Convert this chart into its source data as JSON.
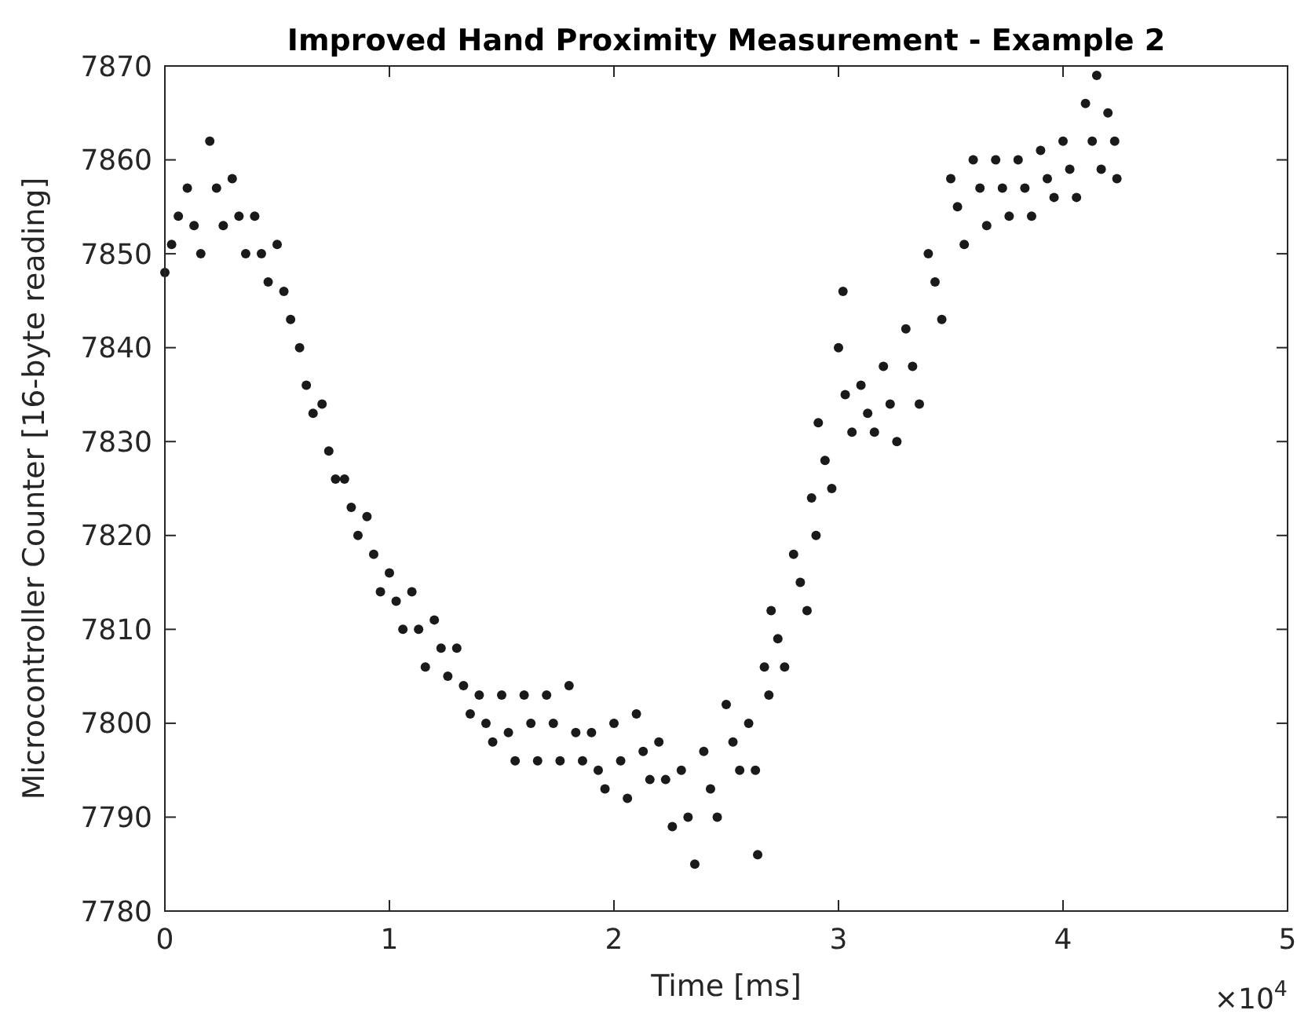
{
  "chart_data": {
    "type": "scatter",
    "title": "Improved Hand Proximity Measurement - Example 2",
    "xlabel": "Time [ms]",
    "ylabel": "Microcontroller Counter [16-byte reading]",
    "annotations": [
      "×10$^{4}$"
    ],
    "xlim": [
      0,
      5
    ],
    "xticks": [
      0,
      1,
      2,
      3,
      4,
      5
    ],
    "ylim": [
      7780,
      7870
    ],
    "yticks": [
      7780,
      7790,
      7800,
      7810,
      7820,
      7830,
      7840,
      7850,
      7860,
      7870
    ],
    "grid": false,
    "marker": "circle",
    "series": [
      {
        "color": "#1a1a1a",
        "x": [
          0,
          0.03,
          0.06,
          0.1,
          0.13,
          0.16,
          0.2,
          0.23,
          0.26,
          0.3,
          0.33,
          0.36,
          0.4,
          0.43,
          0.46,
          0.5,
          0.53,
          0.56,
          0.6,
          0.63,
          0.66,
          0.7,
          0.73,
          0.76,
          0.8,
          0.83,
          0.86,
          0.9,
          0.93,
          0.96,
          1,
          1.03,
          1.06,
          1.1,
          1.13,
          1.16,
          1.2,
          1.23,
          1.26,
          1.3,
          1.33,
          1.36,
          1.4,
          1.43,
          1.46,
          1.5,
          1.53,
          1.56,
          1.6,
          1.63,
          1.66,
          1.7,
          1.73,
          1.76,
          1.8,
          1.83,
          1.86,
          1.9,
          1.93,
          1.96,
          2,
          2.03,
          2.06,
          2.1,
          2.13,
          2.16,
          2.2,
          2.23,
          2.26,
          2.3,
          2.33,
          2.36,
          2.4,
          2.43,
          2.46,
          2.5,
          2.53,
          2.56,
          2.6,
          2.63,
          2.64,
          2.67,
          2.69,
          2.7,
          2.73,
          2.76,
          2.8,
          2.83,
          2.86,
          2.88,
          2.9,
          2.91,
          2.94,
          2.97,
          3,
          3.02,
          3.03,
          3.06,
          3.1,
          3.13,
          3.16,
          3.2,
          3.23,
          3.26,
          3.3,
          3.33,
          3.36,
          3.4,
          3.43,
          3.46,
          3.5,
          3.53,
          3.56,
          3.6,
          3.63,
          3.66,
          3.7,
          3.73,
          3.76,
          3.8,
          3.83,
          3.86,
          3.9,
          3.93,
          3.96,
          4,
          4.03,
          4.06,
          4.1,
          4.13,
          4.15,
          4.17,
          4.2,
          4.23,
          4.24
        ],
        "values": [
          7848,
          7851,
          7854,
          7857,
          7853,
          7850,
          7862,
          7857,
          7853,
          7858,
          7854,
          7850,
          7854,
          7850,
          7847,
          7851,
          7846,
          7843,
          7840,
          7836,
          7833,
          7834,
          7829,
          7826,
          7826,
          7823,
          7820,
          7822,
          7818,
          7814,
          7816,
          7813,
          7810,
          7814,
          7810,
          7806,
          7811,
          7808,
          7805,
          7808,
          7804,
          7801,
          7803,
          7800,
          7798,
          7803,
          7799,
          7796,
          7803,
          7800,
          7796,
          7803,
          7800,
          7796,
          7804,
          7799,
          7796,
          7799,
          7795,
          7793,
          7800,
          7796,
          7792,
          7801,
          7797,
          7794,
          7798,
          7794,
          7789,
          7795,
          7790,
          7785,
          7797,
          7793,
          7790,
          7802,
          7798,
          7795,
          7800,
          7795,
          7786,
          7806,
          7803,
          7812,
          7809,
          7806,
          7818,
          7815,
          7812,
          7824,
          7820,
          7832,
          7828,
          7825,
          7840,
          7846,
          7835,
          7831,
          7836,
          7833,
          7831,
          7838,
          7834,
          7830,
          7842,
          7838,
          7834,
          7850,
          7847,
          7843,
          7858,
          7855,
          7851,
          7860,
          7857,
          7853,
          7860,
          7857,
          7854,
          7860,
          7857,
          7854,
          7861,
          7858,
          7856,
          7862,
          7859,
          7856,
          7866,
          7862,
          7869,
          7859,
          7865,
          7862,
          7858
        ]
      }
    ]
  }
}
